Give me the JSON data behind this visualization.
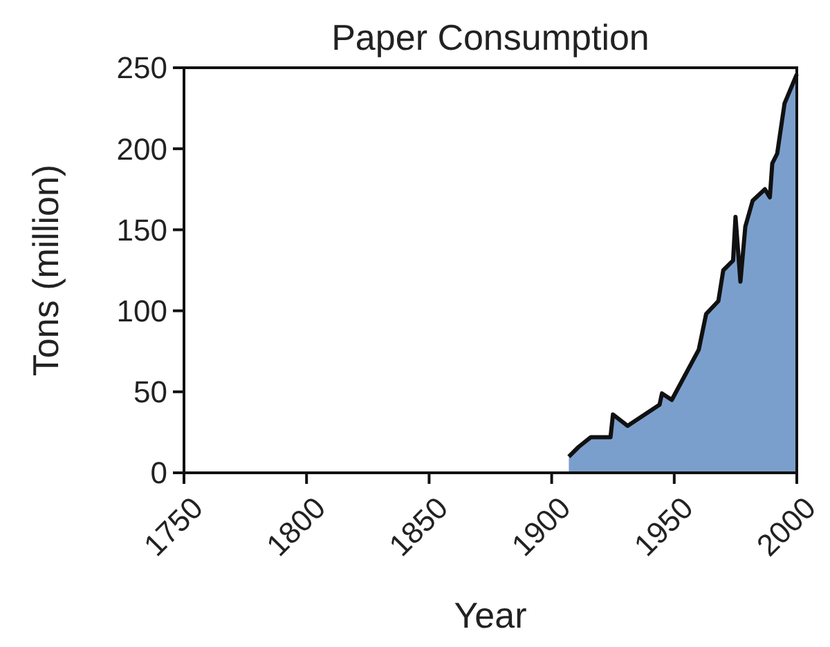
{
  "chart_data": {
    "type": "area",
    "title": "Paper Consumption",
    "xlabel": "Year",
    "ylabel": "Tons (million)",
    "x": [
      1907,
      1911,
      1916,
      1924,
      1925,
      1931,
      1944,
      1945,
      1949,
      1960,
      1963,
      1968,
      1970,
      1974,
      1975,
      1977,
      1979,
      1982,
      1987,
      1989,
      1990,
      1992,
      1995,
      2000
    ],
    "series": [
      {
        "color": "#7b9fcc",
        "values": [
          10,
          16,
          22,
          22,
          36,
          29,
          42,
          49,
          45,
          76,
          98,
          106,
          125,
          131,
          158,
          118,
          152,
          168,
          175,
          170,
          191,
          197,
          228,
          246
        ]
      }
    ],
    "xlim": [
      1750,
      2000
    ],
    "xticks": [
      1750,
      1800,
      1850,
      1900,
      1950,
      2000
    ],
    "ylim": [
      0,
      250
    ],
    "yticks": [
      0,
      50,
      100,
      150,
      200,
      250
    ],
    "grid": false
  }
}
